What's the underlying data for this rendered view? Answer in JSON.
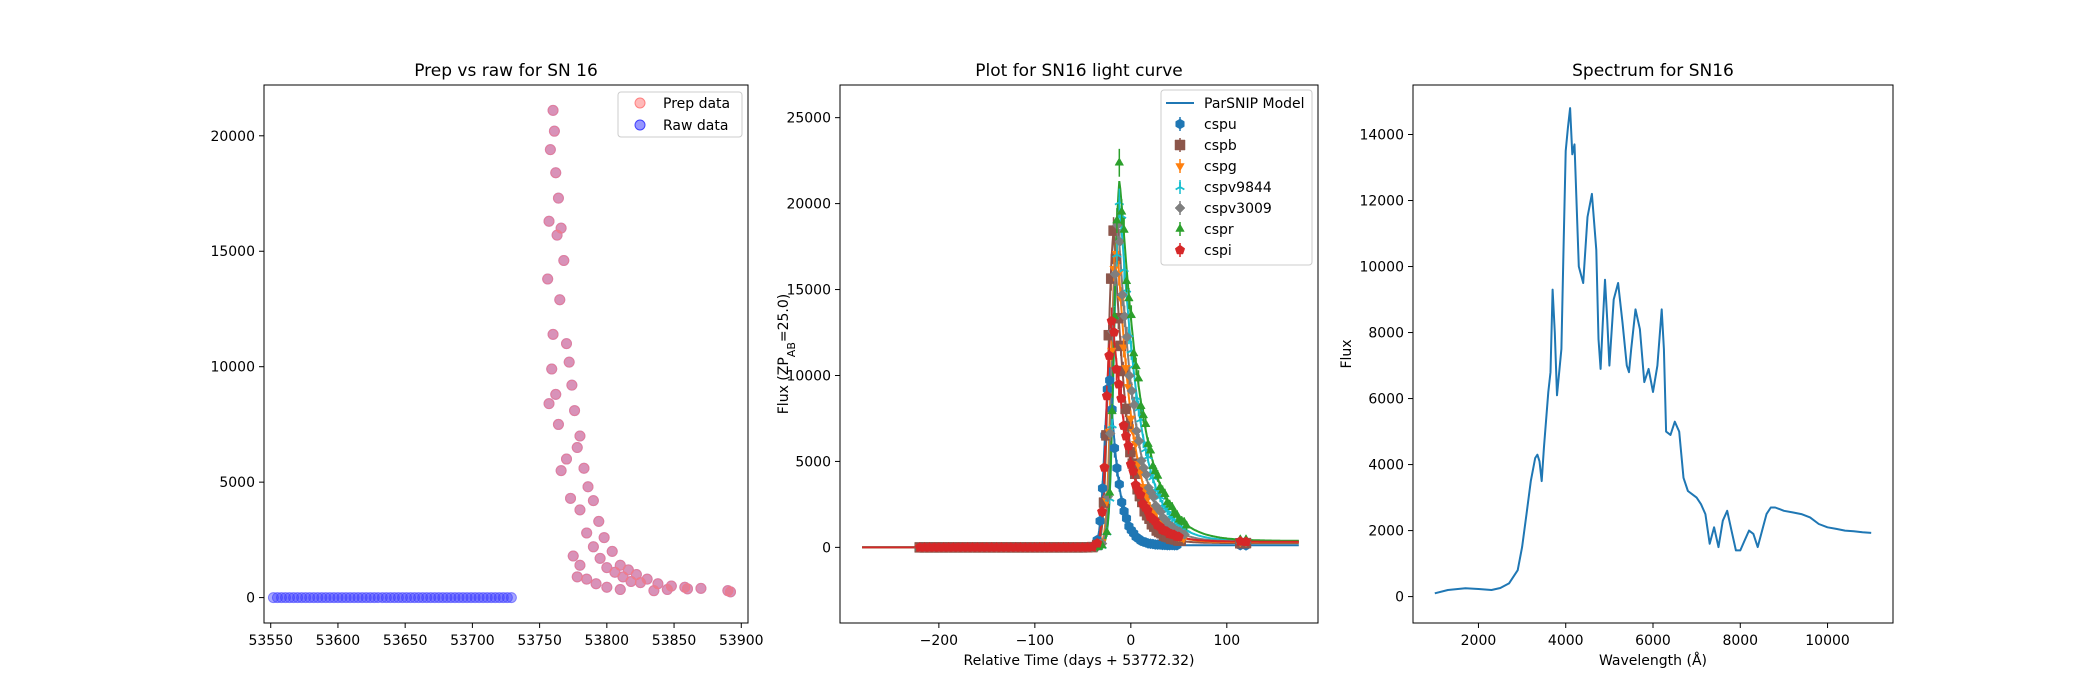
{
  "chart_data": [
    {
      "type": "scatter",
      "title": "Prep vs raw for SN 16",
      "xlabel": "",
      "ylabel": "",
      "xlim": [
        53545,
        53905
      ],
      "ylim": [
        -1100,
        22200
      ],
      "xticks": [
        53550,
        53600,
        53650,
        53700,
        53750,
        53800,
        53850,
        53900
      ],
      "yticks": [
        0,
        5000,
        10000,
        15000,
        20000
      ],
      "grid": false,
      "legend": {
        "placement": "top-right",
        "entries": [
          "Prep data",
          "Raw data"
        ]
      },
      "series": [
        {
          "name": "Prep data",
          "color": "#ff7f7f",
          "points": [
            [
              53760,
              21100
            ],
            [
              53761,
              20200
            ],
            [
              53758,
              19400
            ],
            [
              53762,
              18400
            ],
            [
              53764,
              17300
            ],
            [
              53766,
              16000
            ],
            [
              53757,
              16300
            ],
            [
              53763,
              15700
            ],
            [
              53768,
              14600
            ],
            [
              53756,
              13800
            ],
            [
              53765,
              12900
            ],
            [
              53760,
              11400
            ],
            [
              53770,
              11000
            ],
            [
              53772,
              10200
            ],
            [
              53759,
              9900
            ],
            [
              53774,
              9200
            ],
            [
              53762,
              8800
            ],
            [
              53776,
              8100
            ],
            [
              53780,
              7000
            ],
            [
              53757,
              8400
            ],
            [
              53764,
              7500
            ],
            [
              53778,
              6500
            ],
            [
              53770,
              6000
            ],
            [
              53783,
              5600
            ],
            [
              53766,
              5500
            ],
            [
              53786,
              4800
            ],
            [
              53773,
              4300
            ],
            [
              53790,
              4200
            ],
            [
              53780,
              3800
            ],
            [
              53794,
              3300
            ],
            [
              53785,
              2800
            ],
            [
              53798,
              2600
            ],
            [
              53790,
              2200
            ],
            [
              53804,
              2000
            ],
            [
              53795,
              1700
            ],
            [
              53810,
              1400
            ],
            [
              53800,
              1300
            ],
            [
              53816,
              1200
            ],
            [
              53806,
              1100
            ],
            [
              53822,
              1000
            ],
            [
              53812,
              900
            ],
            [
              53830,
              800
            ],
            [
              53818,
              700
            ],
            [
              53838,
              600
            ],
            [
              53825,
              650
            ],
            [
              53848,
              500
            ],
            [
              53858,
              450
            ],
            [
              53870,
              400
            ],
            [
              53890,
              300
            ],
            [
              53775,
              1800
            ],
            [
              53780,
              1400
            ],
            [
              53778,
              900
            ],
            [
              53785,
              800
            ],
            [
              53792,
              600
            ],
            [
              53800,
              450
            ],
            [
              53810,
              350
            ],
            [
              53835,
              300
            ],
            [
              53845,
              350
            ],
            [
              53860,
              380
            ],
            [
              53892,
              250
            ]
          ]
        },
        {
          "name": "Raw data",
          "color": "#3f3fff",
          "points": []
        }
      ],
      "flat_segment": {
        "x_start": 53552,
        "x_end": 53731,
        "step": 3.0,
        "y": 0
      }
    },
    {
      "type": "line",
      "title": "Plot for SN16 light curve",
      "xlabel": "Relative Time (days + 53772.32)",
      "ylabel": "Flux (ZP_AB=25.0)",
      "xlim": [
        -303,
        195
      ],
      "ylim": [
        -4400,
        26900
      ],
      "xticks": [
        -200,
        -100,
        0,
        100
      ],
      "yticks": [
        0,
        5000,
        10000,
        15000,
        20000,
        25000
      ],
      "grid": false,
      "legend": {
        "placement": "top-right",
        "entries": [
          "ParSNIP Model",
          "cspu",
          "cspb",
          "cspg",
          "cspv9844",
          "cspv3009",
          "cspr",
          "cspi"
        ]
      },
      "series": [
        {
          "name": "cspu",
          "color": "#1f77b4",
          "marker": "hexagon",
          "peak": 10500,
          "peak_t": -22,
          "width": 9,
          "tail": 120
        },
        {
          "name": "cspb",
          "color": "#8c564b",
          "marker": "square",
          "peak": 19500,
          "peak_t": -18,
          "width": 14,
          "tail": 250
        },
        {
          "name": "cspg",
          "color": "#ff7f0e",
          "marker": "triangle-down",
          "peak": 19000,
          "peak_t": -15,
          "width": 16,
          "tail": 300
        },
        {
          "name": "cspv9844",
          "color": "#17becf",
          "marker": "tri",
          "peak": 21000,
          "peak_t": -12,
          "width": 20,
          "tail": 350
        },
        {
          "name": "cspv3009",
          "color": "#7f7f7f",
          "marker": "diamond",
          "peak": 20000,
          "peak_t": -14,
          "width": 18,
          "tail": 330
        },
        {
          "name": "cspr",
          "color": "#2ca02c",
          "marker": "triangle-up",
          "peak": 22500,
          "peak_t": -12,
          "width": 22,
          "tail": 380
        },
        {
          "name": "cspi",
          "color": "#d62728",
          "marker": "pentagon",
          "peak": 14000,
          "peak_t": -20,
          "width": 18,
          "tail": 330
        }
      ],
      "observation_range": [
        -220,
        120
      ],
      "model_range": [
        -280,
        175
      ],
      "model_label": "ParSNIP Model",
      "model_color": "#1f77b4"
    },
    {
      "type": "line",
      "title": "Spectrum for SN16",
      "xlabel": "Wavelength (Å)",
      "ylabel": "Flux",
      "xlim": [
        500,
        11500
      ],
      "ylim": [
        -800,
        15500
      ],
      "xticks": [
        2000,
        4000,
        6000,
        8000,
        10000
      ],
      "yticks": [
        0,
        2000,
        4000,
        6000,
        8000,
        10000,
        12000,
        14000
      ],
      "grid": false,
      "color": "#1f77b4",
      "x": [
        1000,
        1300,
        1700,
        2000,
        2300,
        2500,
        2700,
        2900,
        3000,
        3100,
        3200,
        3300,
        3350,
        3400,
        3450,
        3500,
        3600,
        3650,
        3700,
        3750,
        3800,
        3900,
        3950,
        4000,
        4050,
        4100,
        4150,
        4200,
        4300,
        4400,
        4500,
        4600,
        4700,
        4750,
        4800,
        4850,
        4900,
        4950,
        5000,
        5100,
        5200,
        5300,
        5400,
        5450,
        5500,
        5600,
        5700,
        5800,
        5900,
        6000,
        6100,
        6200,
        6250,
        6300,
        6400,
        6500,
        6600,
        6700,
        6800,
        6900,
        7000,
        7100,
        7200,
        7300,
        7400,
        7500,
        7600,
        7700,
        7800,
        7900,
        8000,
        8100,
        8200,
        8300,
        8400,
        8500,
        8600,
        8700,
        8800,
        8900,
        9000,
        9200,
        9400,
        9600,
        9800,
        10000,
        10200,
        10400,
        10600,
        10800,
        11000
      ],
      "y": [
        100,
        200,
        250,
        230,
        200,
        260,
        400,
        800,
        1500,
        2500,
        3500,
        4200,
        4300,
        4100,
        3500,
        4500,
        6200,
        6800,
        9300,
        8000,
        6100,
        7500,
        10500,
        13500,
        14200,
        14800,
        13400,
        13700,
        10000,
        9500,
        11500,
        12200,
        10500,
        7800,
        6900,
        8300,
        9600,
        8400,
        7000,
        9000,
        9500,
        8300,
        7000,
        6800,
        7500,
        8700,
        8100,
        6500,
        6900,
        6200,
        7000,
        8700,
        7500,
        5000,
        4900,
        5300,
        5000,
        3600,
        3200,
        3100,
        3000,
        2800,
        2500,
        1600,
        2100,
        1500,
        2300,
        2600,
        2000,
        1400,
        1400,
        1700,
        2000,
        1900,
        1500,
        2000,
        2500,
        2700,
        2700,
        2650,
        2600,
        2550,
        2500,
        2400,
        2200,
        2100,
        2050,
        2000,
        1980,
        1950,
        1930
      ]
    }
  ]
}
